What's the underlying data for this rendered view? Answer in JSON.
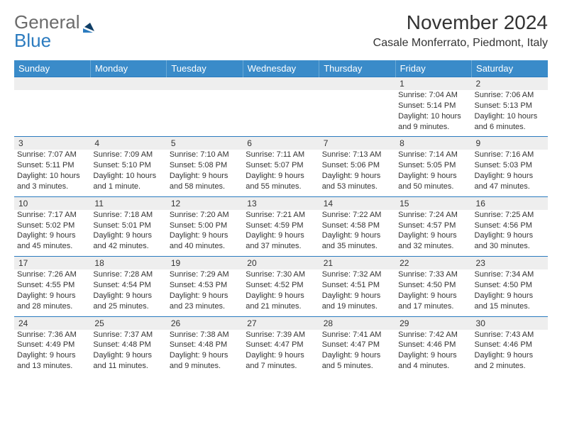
{
  "brand": {
    "general": "General",
    "blue": "Blue"
  },
  "title": "November 2024",
  "location": "Casale Monferrato, Piedmont, Italy",
  "colors": {
    "header_bg": "#3a8bc9",
    "header_text": "#ffffff",
    "rule": "#2b7bbf",
    "daynum_bg": "#eeeeee",
    "text": "#333333",
    "logo_gray": "#6b6b6b",
    "logo_blue": "#2b7bbf"
  },
  "daysOfWeek": [
    "Sunday",
    "Monday",
    "Tuesday",
    "Wednesday",
    "Thursday",
    "Friday",
    "Saturday"
  ],
  "weeks": [
    [
      null,
      null,
      null,
      null,
      null,
      {
        "n": "1",
        "sr": "Sunrise: 7:04 AM",
        "ss": "Sunset: 5:14 PM",
        "dl": "Daylight: 10 hours and 9 minutes."
      },
      {
        "n": "2",
        "sr": "Sunrise: 7:06 AM",
        "ss": "Sunset: 5:13 PM",
        "dl": "Daylight: 10 hours and 6 minutes."
      }
    ],
    [
      {
        "n": "3",
        "sr": "Sunrise: 7:07 AM",
        "ss": "Sunset: 5:11 PM",
        "dl": "Daylight: 10 hours and 3 minutes."
      },
      {
        "n": "4",
        "sr": "Sunrise: 7:09 AM",
        "ss": "Sunset: 5:10 PM",
        "dl": "Daylight: 10 hours and 1 minute."
      },
      {
        "n": "5",
        "sr": "Sunrise: 7:10 AM",
        "ss": "Sunset: 5:08 PM",
        "dl": "Daylight: 9 hours and 58 minutes."
      },
      {
        "n": "6",
        "sr": "Sunrise: 7:11 AM",
        "ss": "Sunset: 5:07 PM",
        "dl": "Daylight: 9 hours and 55 minutes."
      },
      {
        "n": "7",
        "sr": "Sunrise: 7:13 AM",
        "ss": "Sunset: 5:06 PM",
        "dl": "Daylight: 9 hours and 53 minutes."
      },
      {
        "n": "8",
        "sr": "Sunrise: 7:14 AM",
        "ss": "Sunset: 5:05 PM",
        "dl": "Daylight: 9 hours and 50 minutes."
      },
      {
        "n": "9",
        "sr": "Sunrise: 7:16 AM",
        "ss": "Sunset: 5:03 PM",
        "dl": "Daylight: 9 hours and 47 minutes."
      }
    ],
    [
      {
        "n": "10",
        "sr": "Sunrise: 7:17 AM",
        "ss": "Sunset: 5:02 PM",
        "dl": "Daylight: 9 hours and 45 minutes."
      },
      {
        "n": "11",
        "sr": "Sunrise: 7:18 AM",
        "ss": "Sunset: 5:01 PM",
        "dl": "Daylight: 9 hours and 42 minutes."
      },
      {
        "n": "12",
        "sr": "Sunrise: 7:20 AM",
        "ss": "Sunset: 5:00 PM",
        "dl": "Daylight: 9 hours and 40 minutes."
      },
      {
        "n": "13",
        "sr": "Sunrise: 7:21 AM",
        "ss": "Sunset: 4:59 PM",
        "dl": "Daylight: 9 hours and 37 minutes."
      },
      {
        "n": "14",
        "sr": "Sunrise: 7:22 AM",
        "ss": "Sunset: 4:58 PM",
        "dl": "Daylight: 9 hours and 35 minutes."
      },
      {
        "n": "15",
        "sr": "Sunrise: 7:24 AM",
        "ss": "Sunset: 4:57 PM",
        "dl": "Daylight: 9 hours and 32 minutes."
      },
      {
        "n": "16",
        "sr": "Sunrise: 7:25 AM",
        "ss": "Sunset: 4:56 PM",
        "dl": "Daylight: 9 hours and 30 minutes."
      }
    ],
    [
      {
        "n": "17",
        "sr": "Sunrise: 7:26 AM",
        "ss": "Sunset: 4:55 PM",
        "dl": "Daylight: 9 hours and 28 minutes."
      },
      {
        "n": "18",
        "sr": "Sunrise: 7:28 AM",
        "ss": "Sunset: 4:54 PM",
        "dl": "Daylight: 9 hours and 25 minutes."
      },
      {
        "n": "19",
        "sr": "Sunrise: 7:29 AM",
        "ss": "Sunset: 4:53 PM",
        "dl": "Daylight: 9 hours and 23 minutes."
      },
      {
        "n": "20",
        "sr": "Sunrise: 7:30 AM",
        "ss": "Sunset: 4:52 PM",
        "dl": "Daylight: 9 hours and 21 minutes."
      },
      {
        "n": "21",
        "sr": "Sunrise: 7:32 AM",
        "ss": "Sunset: 4:51 PM",
        "dl": "Daylight: 9 hours and 19 minutes."
      },
      {
        "n": "22",
        "sr": "Sunrise: 7:33 AM",
        "ss": "Sunset: 4:50 PM",
        "dl": "Daylight: 9 hours and 17 minutes."
      },
      {
        "n": "23",
        "sr": "Sunrise: 7:34 AM",
        "ss": "Sunset: 4:50 PM",
        "dl": "Daylight: 9 hours and 15 minutes."
      }
    ],
    [
      {
        "n": "24",
        "sr": "Sunrise: 7:36 AM",
        "ss": "Sunset: 4:49 PM",
        "dl": "Daylight: 9 hours and 13 minutes."
      },
      {
        "n": "25",
        "sr": "Sunrise: 7:37 AM",
        "ss": "Sunset: 4:48 PM",
        "dl": "Daylight: 9 hours and 11 minutes."
      },
      {
        "n": "26",
        "sr": "Sunrise: 7:38 AM",
        "ss": "Sunset: 4:48 PM",
        "dl": "Daylight: 9 hours and 9 minutes."
      },
      {
        "n": "27",
        "sr": "Sunrise: 7:39 AM",
        "ss": "Sunset: 4:47 PM",
        "dl": "Daylight: 9 hours and 7 minutes."
      },
      {
        "n": "28",
        "sr": "Sunrise: 7:41 AM",
        "ss": "Sunset: 4:47 PM",
        "dl": "Daylight: 9 hours and 5 minutes."
      },
      {
        "n": "29",
        "sr": "Sunrise: 7:42 AM",
        "ss": "Sunset: 4:46 PM",
        "dl": "Daylight: 9 hours and 4 minutes."
      },
      {
        "n": "30",
        "sr": "Sunrise: 7:43 AM",
        "ss": "Sunset: 4:46 PM",
        "dl": "Daylight: 9 hours and 2 minutes."
      }
    ]
  ]
}
